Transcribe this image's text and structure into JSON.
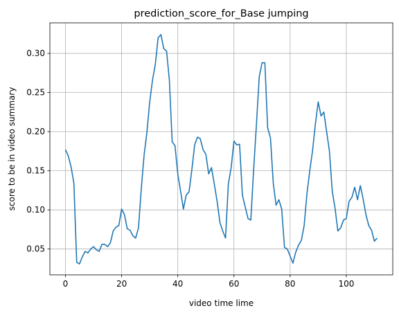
{
  "chart_data": {
    "type": "line",
    "title": "prediction_score_for_Base jumping",
    "xlabel": "video time lime",
    "ylabel": "score to be in video summary",
    "xlim": [
      -5.55,
      116.55
    ],
    "ylim": [
      0.017,
      0.339
    ],
    "xticks": [
      0,
      20,
      40,
      60,
      80,
      100
    ],
    "yticks": [
      0.05,
      0.1,
      0.15,
      0.2,
      0.25,
      0.3
    ],
    "ytick_labels": [
      "0.05",
      "0.10",
      "0.15",
      "0.20",
      "0.25",
      "0.30"
    ],
    "grid": true,
    "line_color": "#1f77b4",
    "series": [
      {
        "x": [
          0,
          1,
          2,
          3,
          4,
          5,
          6,
          7,
          8,
          9,
          10,
          11,
          12,
          13,
          14,
          15,
          16,
          17,
          18,
          19,
          20,
          21,
          22,
          23,
          24,
          25,
          26,
          27,
          28,
          29,
          30,
          31,
          32,
          33,
          34,
          35,
          36,
          37,
          38,
          39,
          40,
          41,
          42,
          43,
          44,
          45,
          46,
          47,
          48,
          49,
          50,
          51,
          52,
          53,
          54,
          55,
          56,
          57,
          58,
          59,
          60,
          61,
          62,
          63,
          64,
          65,
          66,
          67,
          68,
          69,
          70,
          71,
          72,
          73,
          74,
          75,
          76,
          77,
          78,
          79,
          80,
          81,
          82,
          83,
          84,
          85,
          86,
          87,
          88,
          89,
          90,
          91,
          92,
          93,
          94,
          95,
          96,
          97,
          98,
          99,
          100,
          101,
          102,
          103,
          104,
          105,
          106,
          107,
          108,
          109,
          110,
          111
        ],
        "y": [
          0.177,
          0.169,
          0.155,
          0.134,
          0.033,
          0.031,
          0.04,
          0.047,
          0.045,
          0.05,
          0.053,
          0.049,
          0.047,
          0.056,
          0.056,
          0.053,
          0.058,
          0.073,
          0.078,
          0.08,
          0.101,
          0.094,
          0.076,
          0.074,
          0.067,
          0.064,
          0.077,
          0.127,
          0.17,
          0.199,
          0.238,
          0.266,
          0.286,
          0.32,
          0.324,
          0.306,
          0.303,
          0.266,
          0.187,
          0.182,
          0.146,
          0.124,
          0.101,
          0.119,
          0.123,
          0.151,
          0.183,
          0.193,
          0.191,
          0.177,
          0.171,
          0.146,
          0.154,
          0.133,
          0.111,
          0.084,
          0.073,
          0.064,
          0.133,
          0.154,
          0.188,
          0.183,
          0.184,
          0.119,
          0.104,
          0.089,
          0.087,
          0.151,
          0.209,
          0.27,
          0.288,
          0.288,
          0.205,
          0.192,
          0.134,
          0.106,
          0.113,
          0.101,
          0.052,
          0.05,
          0.041,
          0.032,
          0.046,
          0.055,
          0.061,
          0.08,
          0.121,
          0.15,
          0.176,
          0.21,
          0.238,
          0.22,
          0.225,
          0.2,
          0.175,
          0.124,
          0.102,
          0.073,
          0.077,
          0.087,
          0.089,
          0.111,
          0.116,
          0.129,
          0.113,
          0.131,
          0.114,
          0.094,
          0.08,
          0.074,
          0.06,
          0.064
        ]
      }
    ]
  }
}
